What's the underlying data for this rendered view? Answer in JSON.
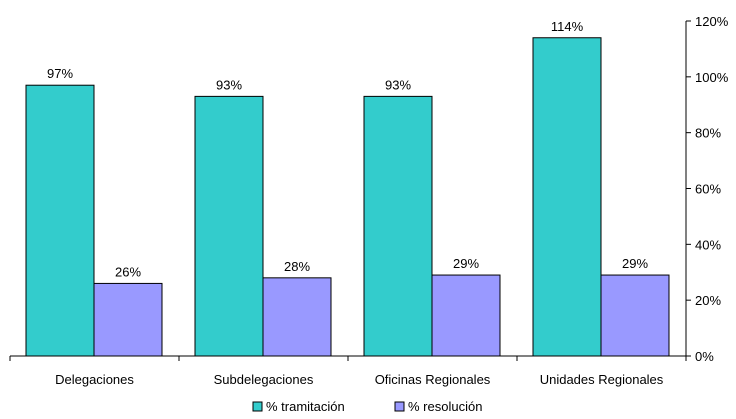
{
  "chart_data": {
    "type": "bar",
    "categories": [
      "Delegaciones",
      "Subdelegaciones",
      "Oficinas Regionales",
      "Unidades Regionales"
    ],
    "series": [
      {
        "name": "% tramitación",
        "values": [
          97,
          93,
          93,
          114
        ],
        "labels": [
          "97%",
          "93%",
          "93%",
          "114%"
        ],
        "color": "#33cccc"
      },
      {
        "name": "% resolución",
        "values": [
          26,
          28,
          29,
          29
        ],
        "labels": [
          "26%",
          "28%",
          "29%",
          "29%"
        ],
        "color": "#9999ff"
      }
    ],
    "y_axis": {
      "position": "right",
      "ylim": [
        0,
        120
      ],
      "ticks": [
        0,
        20,
        40,
        60,
        80,
        100,
        120
      ],
      "tick_labels": [
        "0%",
        "20%",
        "40%",
        "60%",
        "80%",
        "100%",
        "120%"
      ]
    },
    "grid": false,
    "legend": "bottom",
    "title": "",
    "xlabel": "",
    "ylabel": ""
  }
}
